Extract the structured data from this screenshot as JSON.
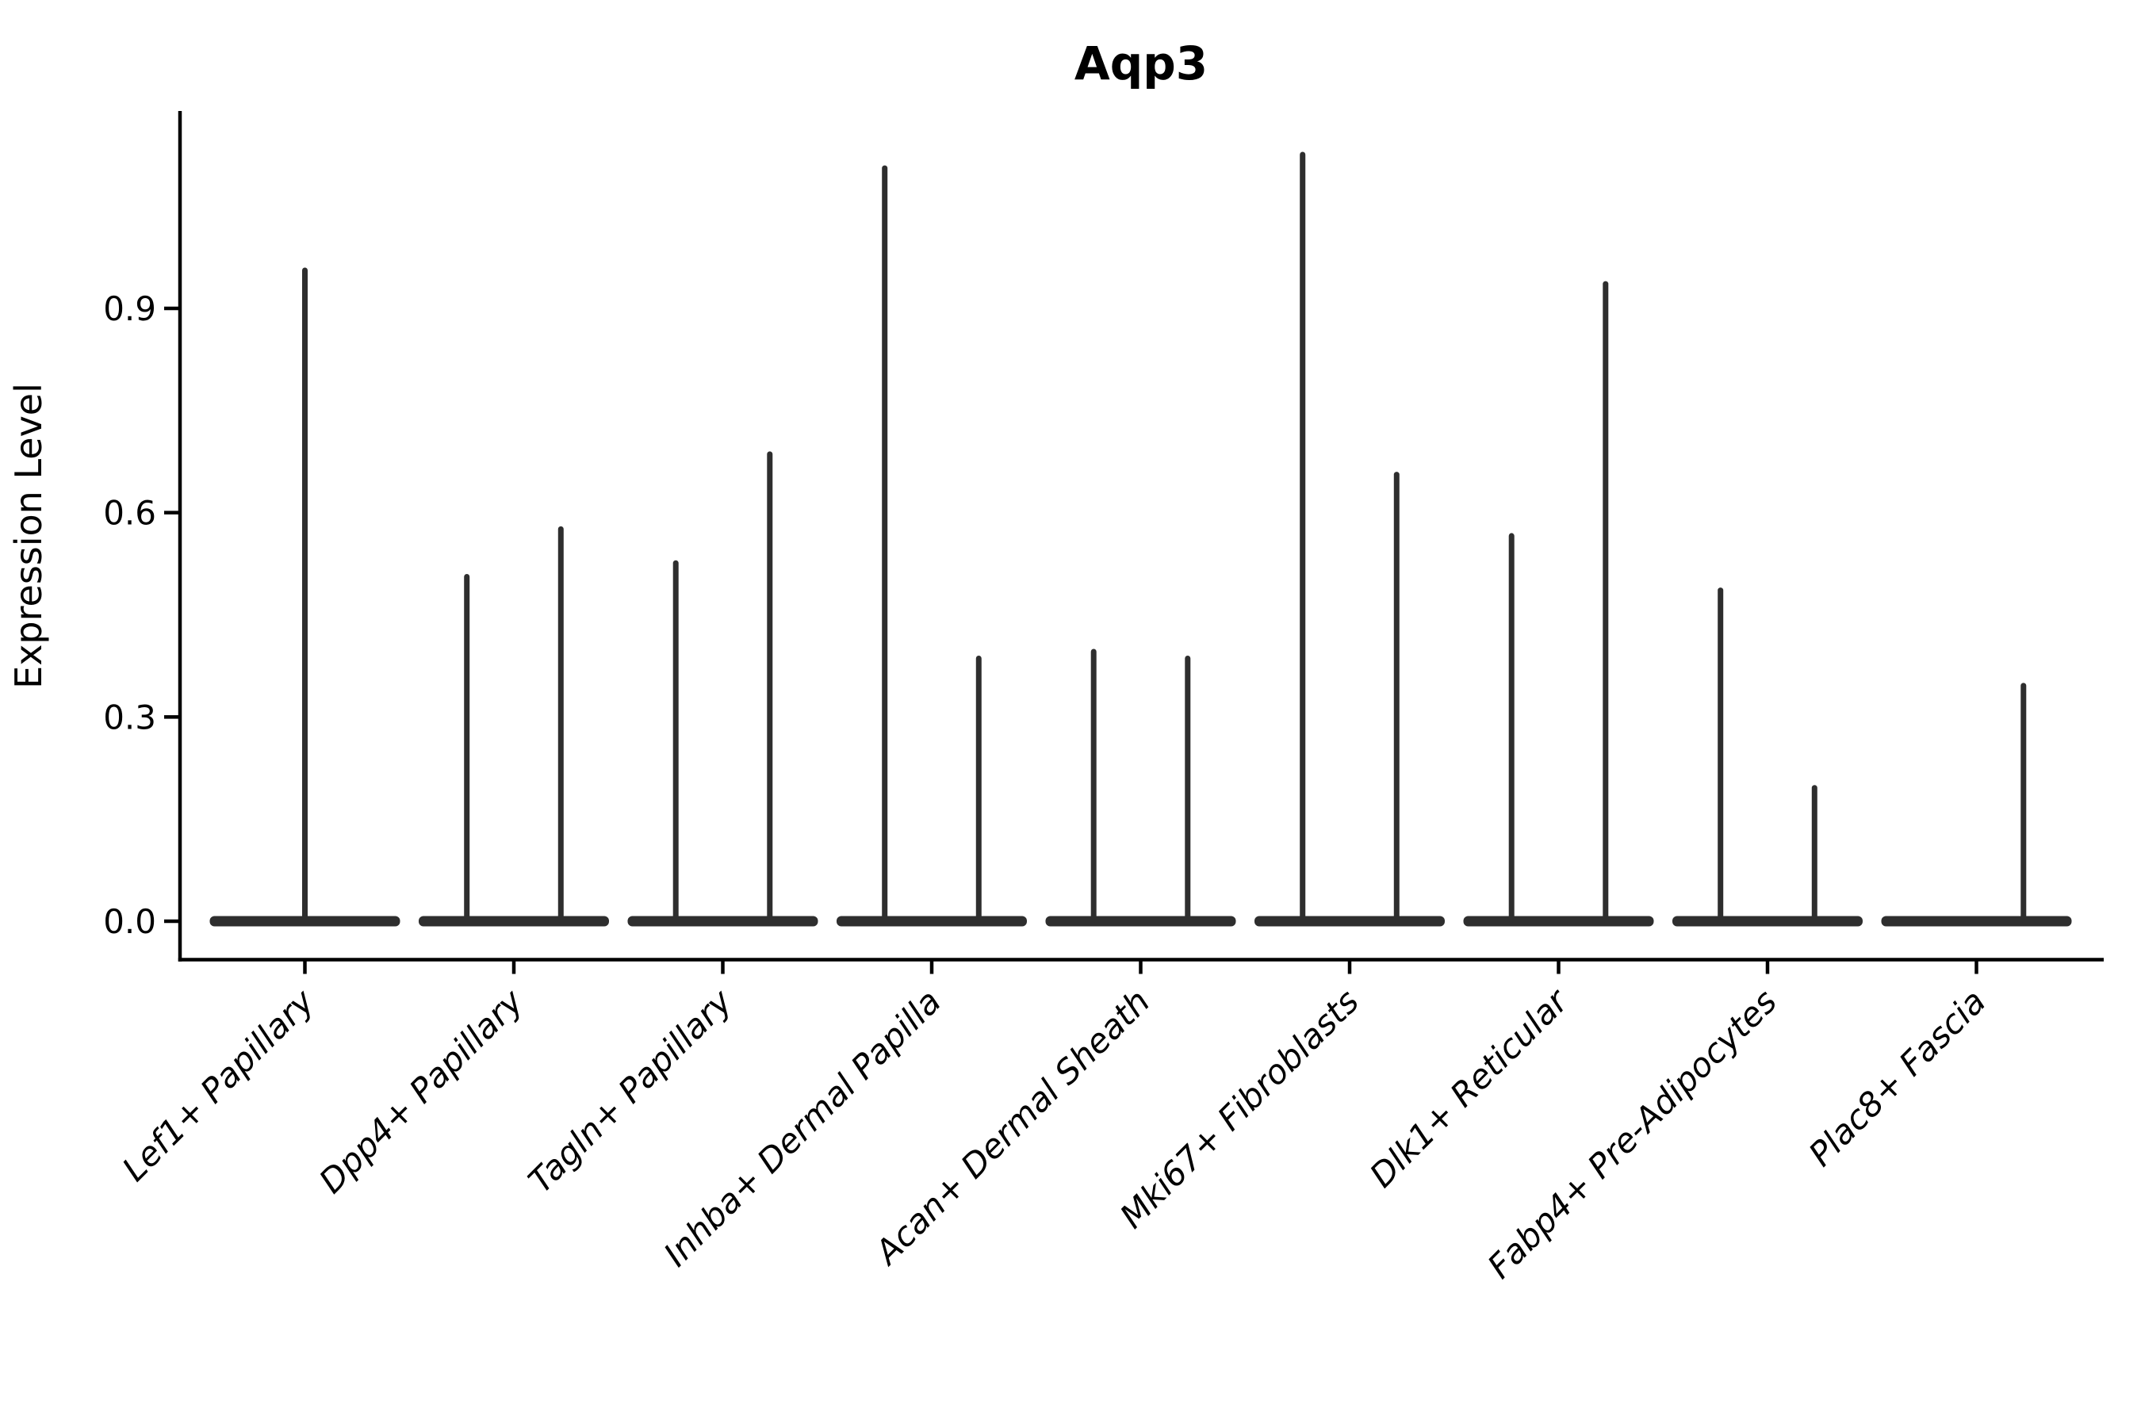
{
  "figure": {
    "title": "Aqp3",
    "y_axis_label": "Expression Level"
  },
  "chart_data": {
    "type": "violin",
    "title": "Aqp3",
    "xlabel": "",
    "ylabel": "Expression Level",
    "ylim": [
      -0.06,
      1.19
    ],
    "yticks": [
      0.0,
      0.3,
      0.6,
      0.9
    ],
    "ytick_labels": [
      "0.0",
      "0.3",
      "0.6",
      "0.9"
    ],
    "grid": false,
    "legend": "none",
    "baseline_value": 0.0,
    "categories": [
      "Lef1+ Papillary",
      "Dpp4+ Papillary",
      "Tagln+ Papillary",
      "Inhba+ Dermal Papilla",
      "Acan+ Dermal Sheath",
      "Mki67+ Fibroblasts",
      "Dlk1+ Reticular",
      "Fabp4+ Pre-Adipocytes",
      "Plac8+ Fascia"
    ],
    "violins": [
      {
        "category": "Lef1+ Papillary",
        "sub_violins": [
          {
            "side": "center",
            "max_value": 0.96
          }
        ]
      },
      {
        "category": "Dpp4+ Papillary",
        "sub_violins": [
          {
            "side": "left",
            "max_value": 0.51
          },
          {
            "side": "right",
            "max_value": 0.58
          }
        ]
      },
      {
        "category": "Tagln+ Papillary",
        "sub_violins": [
          {
            "side": "left",
            "max_value": 0.53
          },
          {
            "side": "right",
            "max_value": 0.69
          }
        ]
      },
      {
        "category": "Inhba+ Dermal Papilla",
        "sub_violins": [
          {
            "side": "left",
            "max_value": 1.11
          },
          {
            "side": "right",
            "max_value": 0.39
          }
        ]
      },
      {
        "category": "Acan+ Dermal Sheath",
        "sub_violins": [
          {
            "side": "left",
            "max_value": 0.4
          },
          {
            "side": "right",
            "max_value": 0.39
          }
        ]
      },
      {
        "category": "Mki67+ Fibroblasts",
        "sub_violins": [
          {
            "side": "left",
            "max_value": 1.13
          },
          {
            "side": "right",
            "max_value": 0.66
          }
        ]
      },
      {
        "category": "Dlk1+ Reticular",
        "sub_violins": [
          {
            "side": "left",
            "max_value": 0.57
          },
          {
            "side": "right",
            "max_value": 0.94
          }
        ]
      },
      {
        "category": "Fabp4+ Pre-Adipocytes",
        "sub_violins": [
          {
            "side": "left",
            "max_value": 0.49
          },
          {
            "side": "right",
            "max_value": 0.2
          }
        ]
      },
      {
        "category": "Plac8+ Fascia",
        "sub_violins": [
          {
            "side": "right",
            "max_value": 0.35
          }
        ]
      }
    ]
  },
  "style": {
    "violin_color": "#2e2e2e",
    "axis_color": "#000000",
    "background_color": "#ffffff"
  }
}
